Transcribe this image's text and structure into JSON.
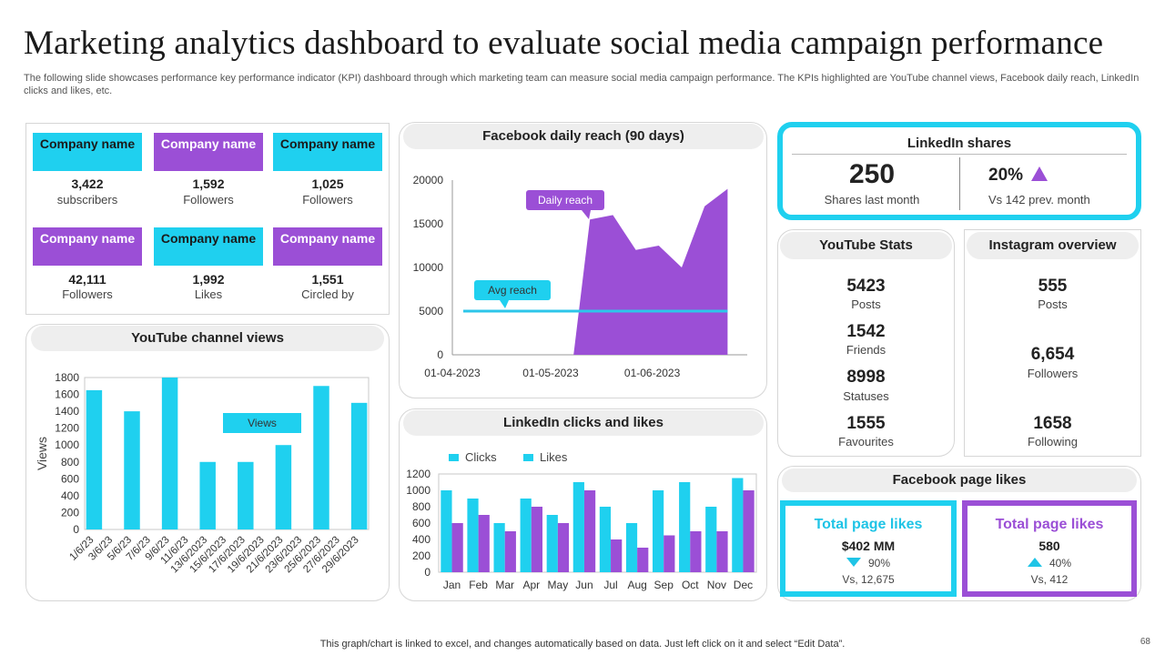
{
  "header": {
    "title": "Marketing analytics dashboard to evaluate social media campaign performance",
    "subtitle": "The following slide showcases performance key performance indicator (KPI) dashboard through which marketing team can measure social media campaign performance. The KPIs highlighted are YouTube channel views, Facebook daily reach, LinkedIn clicks and likes, etc."
  },
  "companies": [
    {
      "name": "Company name",
      "value": "3,422",
      "label": "subscribers"
    },
    {
      "name": "Company name",
      "value": "1,592",
      "label": "Followers"
    },
    {
      "name": "Company name",
      "value": "1,025",
      "label": "Followers"
    },
    {
      "name": "Company name",
      "value": "42,111",
      "label": "Followers"
    },
    {
      "name": "Company name",
      "value": "1,992",
      "label": "Likes"
    },
    {
      "name": "Company name",
      "value": "1,551",
      "label": "Circled by"
    }
  ],
  "youtube_views": {
    "title": "YouTube channel views"
  },
  "facebook_reach": {
    "title": "Facebook daily reach (90 days)"
  },
  "linkedin_clicks": {
    "title": "LinkedIn clicks and likes"
  },
  "linkedin_shares": {
    "title": "LinkedIn shares",
    "value": "250",
    "value_label": "Shares last month",
    "pct": "20%",
    "pct_label": "Vs 142 prev. month"
  },
  "youtube_stats": {
    "title": "YouTube Stats",
    "items": [
      {
        "value": "5423",
        "label": "Posts"
      },
      {
        "value": "1542",
        "label": "Friends"
      },
      {
        "value": "8998",
        "label": "Statuses"
      },
      {
        "value": "1555",
        "label": "Favourites"
      }
    ]
  },
  "instagram": {
    "title": "Instagram overview",
    "items": [
      {
        "value": "555",
        "label": "Posts"
      },
      {
        "value": "6,654",
        "label": "Followers"
      },
      {
        "value": "1658",
        "label": "Following"
      }
    ]
  },
  "fb_page_likes": {
    "title": "Facebook page likes",
    "left": {
      "title": "Total page likes",
      "value": "$402 MM",
      "pct": "90%",
      "vs": "Vs, 12,675"
    },
    "right": {
      "title": "Total page likes",
      "value": "580",
      "pct": "40%",
      "vs": "Vs, 412"
    }
  },
  "footer": {
    "note": "This graph/chart is linked to excel,  and changes automatically based on data. Just left click on it and select “Edit Data”.",
    "page": "68"
  },
  "colors": {
    "cyan": "#1fd0ef",
    "purple": "#9b4fd6"
  },
  "chart_data": [
    {
      "id": "youtube",
      "type": "bar",
      "title": "YouTube channel views",
      "ylabel": "Views",
      "ylim": [
        0,
        1800
      ],
      "yticks": [
        0,
        200,
        400,
        600,
        800,
        1000,
        1200,
        1400,
        1600,
        1800
      ],
      "categories": [
        "1/6/23",
        "3/6/23",
        "5/6/23",
        "7/6/23",
        "9/6/23",
        "11/6/23",
        "13/6/2023",
        "15/6/2023",
        "17/6/2023",
        "19/6/2023",
        "21/6/2023",
        "23/6/2023",
        "25/6/2023",
        "27/6/2023",
        "29/6/2023"
      ],
      "values": [
        1650,
        0,
        1400,
        0,
        1800,
        0,
        800,
        0,
        800,
        0,
        1000,
        0,
        1700,
        0,
        1500
      ],
      "annotation": "Views"
    },
    {
      "id": "facebook",
      "type": "area",
      "title": "Facebook daily reach (90 days)",
      "ylim": [
        0,
        20000
      ],
      "yticks": [
        0,
        5000,
        10000,
        15000,
        20000
      ],
      "xtick_labels": [
        "01-04-2023",
        "01-05-2023",
        "01-06-2023"
      ],
      "x_range_days": [
        0,
        90
      ],
      "x_tick_days": [
        0,
        30,
        61
      ],
      "x": [
        0,
        30,
        37,
        42,
        49,
        56,
        63,
        70,
        77,
        84
      ],
      "values": [
        0,
        0,
        0,
        15500,
        16000,
        12000,
        12500,
        10000,
        17000,
        19000
      ],
      "avg_reach": 5000,
      "annotations": [
        "Daily reach",
        "Avg reach"
      ]
    },
    {
      "id": "linkedin",
      "type": "bar",
      "title": "LinkedIn clicks and likes",
      "ylim": [
        0,
        1200
      ],
      "yticks": [
        0,
        200,
        400,
        600,
        800,
        1000,
        1200
      ],
      "categories": [
        "Jan",
        "Feb",
        "Mar",
        "Apr",
        "May",
        "Jun",
        "Jul",
        "Aug",
        "Sep",
        "Oct",
        "Nov",
        "Dec"
      ],
      "series": [
        {
          "name": "Clicks",
          "color": "#1fd0ef",
          "values": [
            1000,
            900,
            600,
            900,
            700,
            1100,
            800,
            600,
            1000,
            1100,
            800,
            1150
          ]
        },
        {
          "name": "Likes",
          "color": "#9b4fd6",
          "values": [
            600,
            700,
            500,
            800,
            600,
            1000,
            400,
            300,
            450,
            500,
            500,
            1000
          ]
        }
      ]
    }
  ]
}
